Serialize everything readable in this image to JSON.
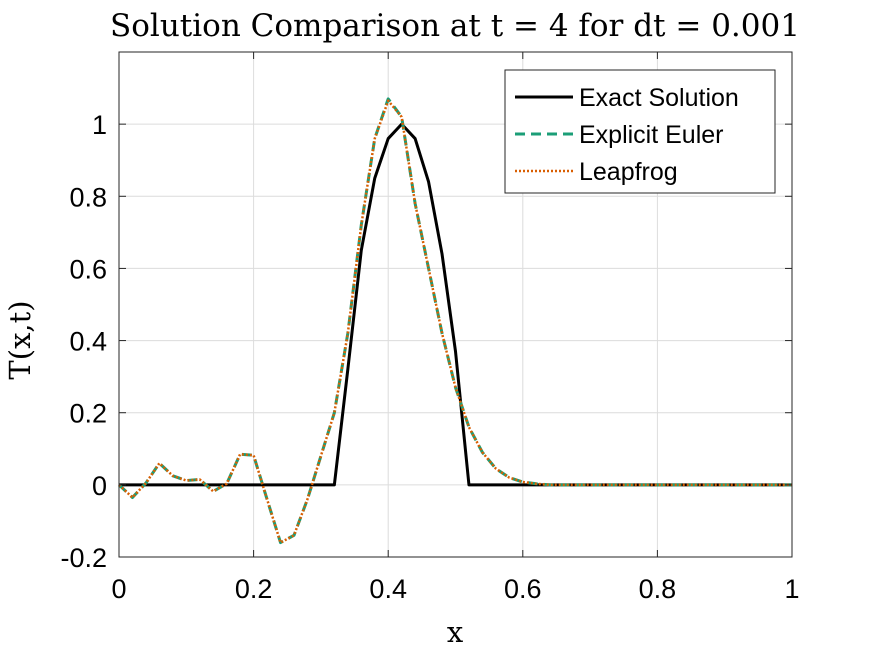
{
  "chart_data": {
    "type": "line",
    "title": "Solution Comparison at t = 4 for dt = 0.001",
    "xlabel": "x",
    "ylabel": "T(x,t)",
    "xlim": [
      0,
      1
    ],
    "ylim": [
      -0.2,
      1.2
    ],
    "xticks": [
      0,
      0.2,
      0.4,
      0.6,
      0.8,
      1
    ],
    "xtick_labels": [
      "0",
      "0.2",
      "0.4",
      "0.6",
      "0.8",
      "1"
    ],
    "yticks": [
      -0.2,
      0,
      0.2,
      0.4,
      0.6,
      0.8,
      1
    ],
    "ytick_labels": [
      "-0.2",
      "0",
      "0.2",
      "0.4",
      "0.6",
      "0.8",
      "1"
    ],
    "grid": true,
    "legend_position": "top-right",
    "colors": {
      "exact": "#000000",
      "euler": "#1b9e77",
      "leapfrog": "#d95f02",
      "grid": "#dcdcdc",
      "axes": "#262626"
    },
    "series": [
      {
        "name": "Exact Solution",
        "style": "solid",
        "x": [
          0,
          0.02,
          0.04,
          0.06,
          0.08,
          0.1,
          0.12,
          0.14,
          0.16,
          0.18,
          0.2,
          0.22,
          0.24,
          0.26,
          0.28,
          0.3,
          0.32,
          0.34,
          0.36,
          0.38,
          0.4,
          0.42,
          0.44,
          0.46,
          0.48,
          0.5,
          0.52,
          0.54,
          0.56,
          0.58,
          0.6,
          0.62,
          0.64,
          0.66,
          0.68,
          0.7,
          0.72,
          0.74,
          0.76,
          0.78,
          0.8,
          0.82,
          0.84,
          0.86,
          0.88,
          0.9,
          0.92,
          0.94,
          0.96,
          0.98,
          1
        ],
        "y": [
          0,
          0,
          0,
          0,
          0,
          0,
          0,
          0,
          0,
          0,
          0,
          0,
          0,
          0,
          0,
          0,
          0,
          0.32,
          0.65,
          0.85,
          0.96,
          1.0,
          0.96,
          0.84,
          0.64,
          0.37,
          0,
          0,
          0,
          0,
          0,
          0,
          0,
          0,
          0,
          0,
          0,
          0,
          0,
          0,
          0,
          0,
          0,
          0,
          0,
          0,
          0,
          0,
          0,
          0,
          0
        ]
      },
      {
        "name": "Explicit Euler",
        "style": "dashed",
        "x": [
          0,
          0.02,
          0.04,
          0.06,
          0.08,
          0.1,
          0.12,
          0.14,
          0.16,
          0.18,
          0.2,
          0.22,
          0.24,
          0.26,
          0.28,
          0.3,
          0.32,
          0.34,
          0.36,
          0.38,
          0.4,
          0.42,
          0.44,
          0.46,
          0.48,
          0.5,
          0.52,
          0.54,
          0.56,
          0.58,
          0.6,
          0.62,
          0.64,
          0.66,
          0.68,
          0.7,
          0.72,
          0.74,
          0.76,
          0.78,
          0.8,
          0.82,
          0.84,
          0.86,
          0.88,
          0.9,
          0.92,
          0.94,
          0.96,
          0.98,
          1
        ],
        "y": [
          0,
          -0.035,
          0.005,
          0.06,
          0.025,
          0.012,
          0.015,
          -0.018,
          0.003,
          0.085,
          0.082,
          -0.04,
          -0.16,
          -0.14,
          -0.04,
          0.08,
          0.2,
          0.42,
          0.72,
          0.96,
          1.07,
          1.02,
          0.78,
          0.6,
          0.42,
          0.27,
          0.16,
          0.09,
          0.045,
          0.02,
          0.008,
          0.003,
          0,
          0,
          0,
          0,
          0,
          0,
          0,
          0,
          0,
          0,
          0,
          0,
          0,
          0,
          0,
          0,
          0,
          0,
          0
        ]
      },
      {
        "name": "Leapfrog",
        "style": "dotted",
        "x": [
          0,
          0.02,
          0.04,
          0.06,
          0.08,
          0.1,
          0.12,
          0.14,
          0.16,
          0.18,
          0.2,
          0.22,
          0.24,
          0.26,
          0.28,
          0.3,
          0.32,
          0.34,
          0.36,
          0.38,
          0.4,
          0.42,
          0.44,
          0.46,
          0.48,
          0.5,
          0.52,
          0.54,
          0.56,
          0.58,
          0.6,
          0.62,
          0.64,
          0.66,
          0.68,
          0.7,
          0.72,
          0.74,
          0.76,
          0.78,
          0.8,
          0.82,
          0.84,
          0.86,
          0.88,
          0.9,
          0.92,
          0.94,
          0.96,
          0.98,
          1
        ],
        "y": [
          0,
          -0.035,
          0.005,
          0.06,
          0.025,
          0.012,
          0.015,
          -0.018,
          0.003,
          0.085,
          0.082,
          -0.04,
          -0.16,
          -0.14,
          -0.04,
          0.08,
          0.2,
          0.42,
          0.72,
          0.96,
          1.065,
          1.02,
          0.78,
          0.6,
          0.42,
          0.27,
          0.16,
          0.09,
          0.045,
          0.02,
          0.008,
          0.003,
          0,
          0,
          0,
          0,
          0,
          0,
          0,
          0,
          0,
          0,
          0,
          0,
          0,
          0,
          0,
          0,
          0,
          0,
          0
        ]
      }
    ]
  }
}
